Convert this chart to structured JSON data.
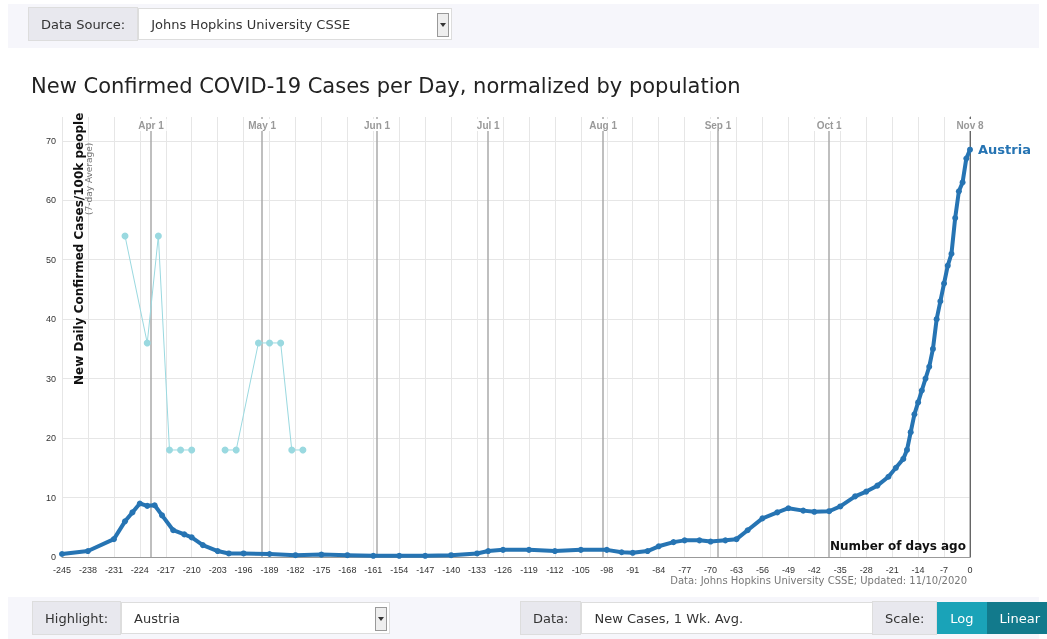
{
  "chart_data": {
    "type": "line",
    "title": "New Confirmed COVID-19 Cases per Day, normalized by population",
    "xlabel": "Number of days ago",
    "ylabel": "New Daily Confirmed Cases/100k people",
    "annotations": [
      "(7-day Average)",
      "Data: Johns Hopkins University CSSE; Updated: 11/10/2020",
      "Data Source:",
      "Johns Hopkins University CSSE",
      "Highlight:",
      "Austria",
      "Data:",
      "New Cases, 1 Wk. Avg.",
      "Scale:",
      "Log",
      "Linear"
    ],
    "series": [
      {
        "color": "#9ad9e0",
        "marker": "circle",
        "x": [
          -228,
          -222,
          -219,
          -216,
          -213,
          -210,
          -205,
          -201,
          -198,
          -192,
          -189,
          -186,
          -183,
          -180
        ],
        "values": [
          54,
          36,
          54,
          18,
          18,
          18,
          null,
          18,
          18,
          36,
          36,
          36,
          18,
          18
        ]
      },
      {
        "name": "Austria",
        "color": "#2674b3",
        "marker": "circle",
        "x": [
          -245,
          -238,
          -231,
          -228,
          -226,
          -224,
          -222,
          -220,
          -218,
          -215,
          -212,
          -210,
          -207,
          -203,
          -200,
          -196,
          -189,
          -182,
          -175,
          -168,
          -161,
          -154,
          -147,
          -140,
          -133,
          -130,
          -126,
          -119,
          -112,
          -105,
          -98,
          -94,
          -91,
          -87,
          -84,
          -80,
          -77,
          -73,
          -70,
          -66,
          -63,
          -60,
          -56,
          -52,
          -49,
          -45,
          -42,
          -38,
          -35,
          -31,
          -28,
          -25,
          -22,
          -20,
          -18,
          -17,
          -16,
          -15,
          -14,
          -13,
          -12,
          -11,
          -10,
          -9,
          -8,
          -7,
          -6,
          -5,
          -4,
          -3,
          -2,
          -1,
          0
        ],
        "values": [
          0.5,
          1.0,
          3,
          6,
          7.5,
          9,
          8.6,
          8.7,
          7,
          4.5,
          3.8,
          3.3,
          2,
          1,
          0.6,
          0.6,
          0.5,
          0.3,
          0.4,
          0.3,
          0.2,
          0.2,
          0.2,
          0.3,
          0.6,
          1.0,
          1.2,
          1.2,
          1.0,
          1.2,
          1.2,
          0.8,
          0.7,
          1.0,
          1.8,
          2.5,
          2.8,
          2.8,
          2.6,
          2.8,
          3.0,
          4.5,
          6.5,
          7.5,
          8.2,
          7.8,
          7.6,
          7.7,
          8.5,
          10.2,
          11,
          12,
          13.5,
          15,
          16.5,
          18,
          21,
          24,
          26,
          28,
          30,
          32,
          35,
          40,
          43,
          46,
          49,
          51,
          57,
          61.5,
          63,
          67,
          68.5
        ]
      }
    ],
    "xlim": [
      -245,
      0
    ],
    "xticks": [
      -245,
      -238,
      -231,
      -224,
      -217,
      -210,
      -203,
      -196,
      -189,
      -182,
      -175,
      -168,
      -161,
      -154,
      -147,
      -140,
      -133,
      -126,
      -119,
      -112,
      -105,
      -98,
      -91,
      -84,
      -77,
      -70,
      -63,
      -56,
      -49,
      -42,
      -35,
      -28,
      -21,
      -14,
      -7,
      0
    ],
    "x2lim": [
      "--03-08",
      "--11-08"
    ],
    "x2ticks": [
      {
        "value": "--04-01",
        "label": "Apr 1"
      },
      {
        "value": "--05-01",
        "label": "May 1"
      },
      {
        "value": "--06-01",
        "label": "Jun 1"
      },
      {
        "value": "--07-01",
        "label": "Jul 1"
      },
      {
        "value": "--08-01",
        "label": "Aug 1"
      },
      {
        "value": "--09-01",
        "label": "Sep 1"
      },
      {
        "value": "--10-01",
        "label": "Oct 1"
      },
      {
        "value": "--11-08",
        "label": "Nov 8"
      }
    ],
    "ylim": [
      0,
      74
    ],
    "yticks": [
      0,
      10,
      20,
      30,
      40,
      50,
      60,
      70
    ],
    "grid": true,
    "line_style": "solid"
  }
}
